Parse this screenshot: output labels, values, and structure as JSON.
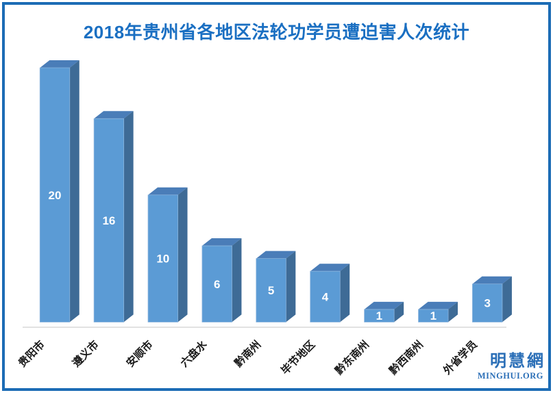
{
  "title": {
    "text": "2018年贵州省各地区法轮功学员遭迫害人次统计",
    "color": "#1a6fc2"
  },
  "frame": {
    "border_color": "#1c6cb5"
  },
  "logo": {
    "cjk": "明慧網",
    "latin": "MINGHUI.ORG",
    "color": "#2b6fb7"
  },
  "chart_data": {
    "type": "bar",
    "style": "3d-box",
    "title": "2018年贵州省各地区法轮功学员遭迫害人次统计",
    "categories": [
      "贵阳市",
      "遵义市",
      "安顺市",
      "六盘水",
      "黔南州",
      "毕节地区",
      "黔东南州",
      "黔西南州",
      "外省学员"
    ],
    "values": [
      20,
      16,
      10,
      6,
      5,
      4,
      1,
      1,
      3
    ],
    "value_labels": [
      "20",
      "16",
      "10",
      "6",
      "5",
      "4",
      "1",
      "1",
      "3"
    ],
    "xlabel": "",
    "ylabel": "",
    "ylim": [
      0,
      20
    ],
    "grid": false,
    "legend": false,
    "category_label_rotation_deg": -45,
    "colors": {
      "bar_front": "#5B9BD5",
      "bar_top": "#4A7DB8",
      "bar_side": "#3E6B96",
      "bar_edge": "#8ab4dd",
      "value_label": "#ffffff",
      "category_label": "#1a1a1a",
      "axis_line": "#d9d9d9"
    }
  }
}
